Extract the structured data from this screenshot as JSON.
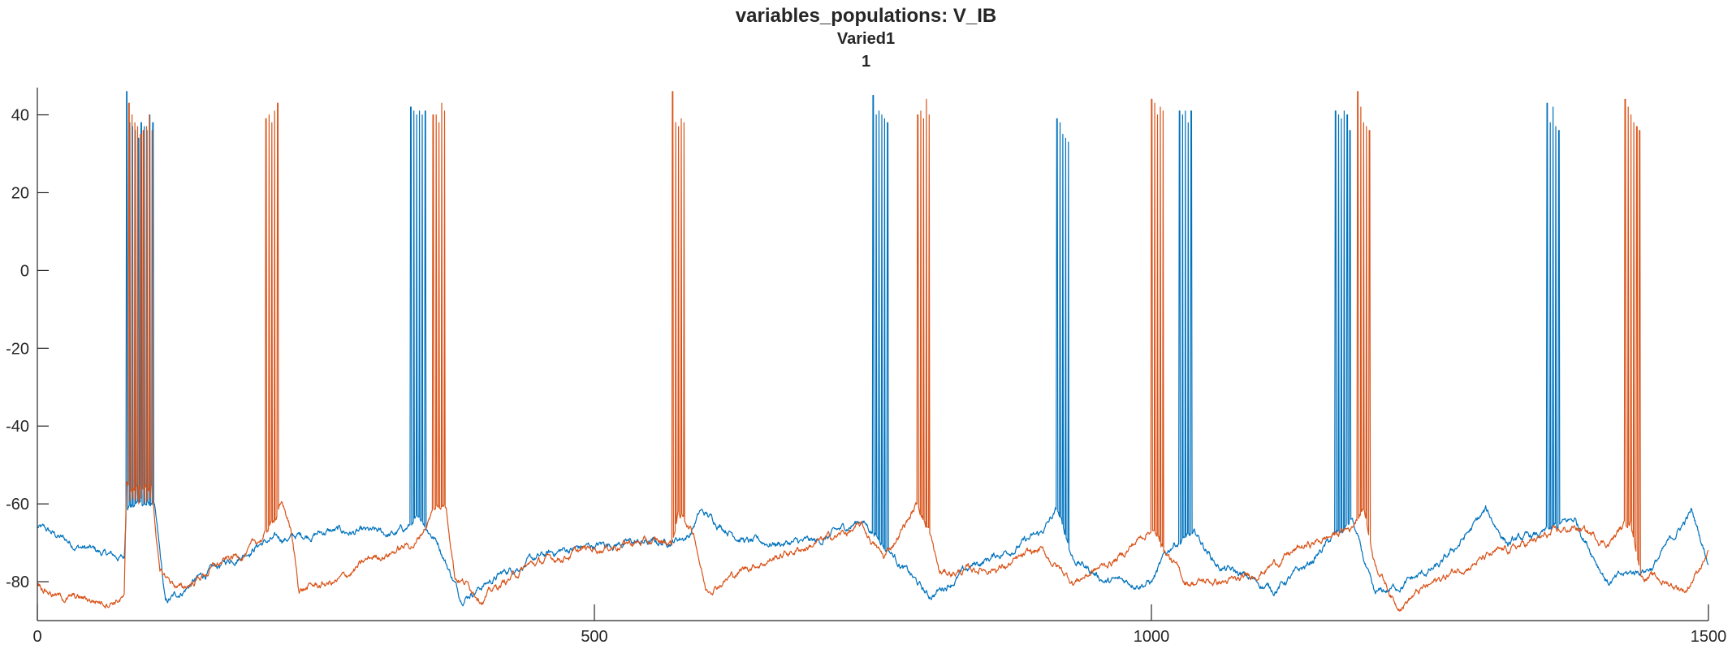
{
  "chart_data": {
    "type": "line",
    "title": "variables_populations: V_IB",
    "subtitle": "Varied1",
    "subtitle2": "1",
    "xlabel": "",
    "ylabel": "",
    "xlim": [
      0,
      1500
    ],
    "ylim": [
      -90,
      47
    ],
    "xticks": [
      0,
      500,
      1000,
      1500
    ],
    "yticks": [
      -80,
      -60,
      -40,
      -20,
      0,
      20,
      40
    ],
    "grid": false,
    "legend": "none",
    "series": [
      {
        "color": "#0072BD",
        "baseline": [
          [
            0,
            -66
          ],
          [
            30,
            -70
          ],
          [
            60,
            -73
          ],
          [
            78,
            -74
          ],
          [
            80,
            -60
          ],
          [
            105,
            -60
          ],
          [
            115,
            -86
          ],
          [
            140,
            -80
          ],
          [
            200,
            -70
          ],
          [
            260,
            -67
          ],
          [
            320,
            -68
          ],
          [
            345,
            -64
          ],
          [
            360,
            -70
          ],
          [
            380,
            -84
          ],
          [
            430,
            -76
          ],
          [
            470,
            -72
          ],
          [
            520,
            -70
          ],
          [
            560,
            -70
          ],
          [
            585,
            -68
          ],
          [
            595,
            -62
          ],
          [
            640,
            -70
          ],
          [
            700,
            -70
          ],
          [
            740,
            -64
          ],
          [
            765,
            -72
          ],
          [
            800,
            -84
          ],
          [
            840,
            -76
          ],
          [
            900,
            -68
          ],
          [
            915,
            -62
          ],
          [
            930,
            -74
          ],
          [
            960,
            -80
          ],
          [
            1000,
            -80
          ],
          [
            1020,
            -70
          ],
          [
            1040,
            -68
          ],
          [
            1060,
            -76
          ],
          [
            1110,
            -82
          ],
          [
            1140,
            -76
          ],
          [
            1165,
            -68
          ],
          [
            1180,
            -64
          ],
          [
            1200,
            -84
          ],
          [
            1260,
            -76
          ],
          [
            1300,
            -62
          ],
          [
            1320,
            -70
          ],
          [
            1350,
            -68
          ],
          [
            1380,
            -64
          ],
          [
            1410,
            -80
          ],
          [
            1450,
            -76
          ],
          [
            1485,
            -62
          ],
          [
            1500,
            -75
          ]
        ],
        "bursts": [
          [
            80,
            [
              46,
              38,
              37,
              36,
              34,
              38,
              37,
              36,
              40,
              38
            ]
          ],
          [
            335,
            [
              42,
              41,
              40,
              41,
              40,
              41
            ]
          ],
          [
            750,
            [
              45,
              40,
              41,
              40,
              39,
              38
            ]
          ],
          [
            915,
            [
              39,
              38,
              35,
              34,
              33
            ]
          ],
          [
            1025,
            [
              41,
              40,
              41,
              38,
              41
            ]
          ],
          [
            1165,
            [
              41,
              40,
              39,
              41,
              40,
              36
            ]
          ],
          [
            1355,
            [
              43,
              38,
              42,
              37,
              36
            ]
          ]
        ]
      },
      {
        "color": "#D95319",
        "baseline": [
          [
            0,
            -80
          ],
          [
            20,
            -84
          ],
          [
            60,
            -85
          ],
          [
            78,
            -84
          ],
          [
            80,
            -56
          ],
          [
            103,
            -56
          ],
          [
            110,
            -78
          ],
          [
            130,
            -82
          ],
          [
            160,
            -76
          ],
          [
            190,
            -72
          ],
          [
            205,
            -68
          ],
          [
            220,
            -60
          ],
          [
            227,
            -66
          ],
          [
            235,
            -82
          ],
          [
            270,
            -80
          ],
          [
            300,
            -74
          ],
          [
            340,
            -70
          ],
          [
            355,
            -62
          ],
          [
            367,
            -60
          ],
          [
            375,
            -78
          ],
          [
            400,
            -84
          ],
          [
            440,
            -76
          ],
          [
            490,
            -72
          ],
          [
            530,
            -70
          ],
          [
            570,
            -70
          ],
          [
            575,
            -62
          ],
          [
            590,
            -68
          ],
          [
            600,
            -82
          ],
          [
            640,
            -76
          ],
          [
            700,
            -70
          ],
          [
            740,
            -66
          ],
          [
            760,
            -74
          ],
          [
            790,
            -60
          ],
          [
            800,
            -66
          ],
          [
            810,
            -78
          ],
          [
            870,
            -76
          ],
          [
            900,
            -72
          ],
          [
            930,
            -80
          ],
          [
            970,
            -74
          ],
          [
            1000,
            -66
          ],
          [
            1030,
            -80
          ],
          [
            1080,
            -80
          ],
          [
            1130,
            -72
          ],
          [
            1180,
            -66
          ],
          [
            1190,
            -60
          ],
          [
            1200,
            -74
          ],
          [
            1220,
            -86
          ],
          [
            1280,
            -76
          ],
          [
            1340,
            -70
          ],
          [
            1380,
            -66
          ],
          [
            1410,
            -70
          ],
          [
            1430,
            -64
          ],
          [
            1440,
            -78
          ],
          [
            1480,
            -82
          ],
          [
            1500,
            -72
          ]
        ],
        "bursts": [
          [
            82,
            [
              43,
              40,
              38,
              37,
              35,
              36,
              37,
              40,
              36
            ]
          ],
          [
            205,
            [
              39,
              40,
              38,
              41,
              43
            ]
          ],
          [
            355,
            [
              40,
              40,
              38,
              43,
              41
            ]
          ],
          [
            570,
            [
              46,
              38,
              37,
              39,
              38
            ]
          ],
          [
            790,
            [
              40,
              41,
              39,
              44,
              40
            ]
          ],
          [
            1000,
            [
              44,
              43,
              40,
              42,
              41
            ]
          ],
          [
            1185,
            [
              46,
              42,
              38,
              37,
              36
            ]
          ],
          [
            1425,
            [
              44,
              42,
              40,
              38,
              37,
              36
            ]
          ]
        ]
      }
    ]
  }
}
